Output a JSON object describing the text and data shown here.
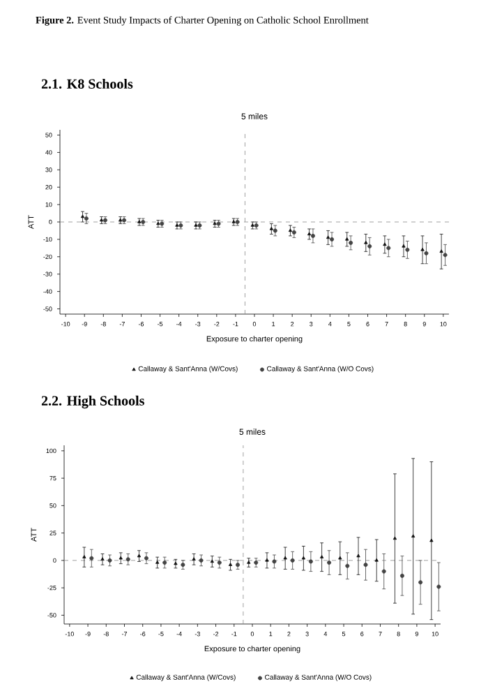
{
  "chart_data": [
    {
      "type": "scatter",
      "title": "2.1. K8 Schools",
      "subtitle": "5 miles",
      "xlabel": "Exposure to charter opening",
      "ylabel": "ATT",
      "annotations": [
        "**Figure 2.** Event Study Impacts of Charter Opening on Catholic School Enrollment"
      ],
      "xlim": [
        -10.3,
        10.3
      ],
      "ylim": [
        -53,
        53
      ],
      "xticks": [
        -10,
        -9,
        -8,
        -7,
        -6,
        -5,
        -4,
        -3,
        -2,
        -1,
        0,
        1,
        2,
        3,
        4,
        5,
        6,
        7,
        8,
        9,
        10
      ],
      "yticks": [
        -50,
        -40,
        -30,
        -20,
        -10,
        0,
        10,
        20,
        30,
        40,
        50
      ],
      "legend": "bottom",
      "grid": false,
      "ref_lines": [
        {
          "axis": "y",
          "value": 0,
          "color": "#888888",
          "line_style": "dashed"
        },
        {
          "axis": "x",
          "value": -0.5,
          "color": "#888888",
          "line_style": "dashed"
        }
      ],
      "series": [
        {
          "name": "Callaway & Sant'Anna (W/Covs)",
          "color": "#111111",
          "marker": "triangle",
          "x": [
            -9.1,
            -8.1,
            -7.1,
            -6.1,
            -5.1,
            -4.1,
            -3.1,
            -2.1,
            -1.1,
            -0.1,
            0.9,
            1.9,
            2.9,
            3.9,
            4.9,
            5.9,
            6.9,
            7.9,
            8.9,
            9.9
          ],
          "values": [
            3,
            1,
            1,
            0,
            -1,
            -2,
            -2,
            -1,
            0,
            -2,
            -4,
            -5,
            -7,
            -9,
            -10,
            -12,
            -13,
            -14,
            -16,
            -17
          ],
          "errors": [
            3,
            2,
            2,
            2,
            2,
            2,
            2,
            2,
            2,
            2,
            3,
            3,
            3,
            4,
            4,
            5,
            5,
            6,
            8,
            10
          ]
        },
        {
          "name": "Callaway & Sant'Anna (W/O Covs)",
          "color": "#444444",
          "marker": "circle",
          "x": [
            -8.9,
            -7.9,
            -6.9,
            -5.9,
            -4.9,
            -3.9,
            -2.9,
            -1.9,
            -0.9,
            0.1,
            1.1,
            2.1,
            3.1,
            4.1,
            5.1,
            6.1,
            7.1,
            8.1,
            9.1,
            10.1
          ],
          "values": [
            2,
            1,
            1,
            0,
            -1,
            -2,
            -2,
            -1,
            0,
            -2,
            -5,
            -6,
            -8,
            -10,
            -12,
            -14,
            -15,
            -16,
            -18,
            -19
          ],
          "errors": [
            3,
            2,
            2,
            2,
            2,
            2,
            2,
            2,
            2,
            2,
            3,
            3,
            4,
            4,
            4,
            5,
            5,
            5,
            6,
            6
          ]
        }
      ]
    },
    {
      "type": "scatter",
      "title": "2.2. High Schools",
      "subtitle": "5 miles",
      "xlabel": "Exposure to charter opening",
      "ylabel": "ATT",
      "xlim": [
        -10.3,
        10.3
      ],
      "ylim": [
        -58,
        105
      ],
      "xticks": [
        -10,
        -9,
        -8,
        -7,
        -6,
        -5,
        -4,
        -3,
        -2,
        -1,
        0,
        1,
        2,
        3,
        4,
        5,
        6,
        7,
        8,
        9,
        10
      ],
      "yticks": [
        -50,
        -25,
        0,
        25,
        50,
        75,
        100
      ],
      "legend": "bottom",
      "grid": false,
      "ref_lines": [
        {
          "axis": "y",
          "value": 0,
          "color": "#888888",
          "line_style": "dashed"
        },
        {
          "axis": "x",
          "value": -0.5,
          "color": "#888888",
          "line_style": "dashed"
        }
      ],
      "series": [
        {
          "name": "Callaway & Sant'Anna (W/Covs)",
          "color": "#111111",
          "marker": "triangle",
          "x": [
            -9.2,
            -8.2,
            -7.2,
            -6.2,
            -5.2,
            -4.2,
            -3.2,
            -2.2,
            -1.2,
            -0.2,
            0.8,
            1.8,
            2.8,
            3.8,
            4.8,
            5.8,
            6.8,
            7.8,
            8.8,
            9.8
          ],
          "values": [
            3,
            1,
            2,
            4,
            -2,
            -3,
            1,
            -1,
            -4,
            -2,
            0,
            2,
            2,
            3,
            2,
            4,
            0,
            20,
            22,
            18
          ],
          "errors": [
            9,
            5,
            5,
            5,
            5,
            4,
            5,
            5,
            5,
            4,
            7,
            10,
            11,
            13,
            15,
            17,
            19,
            59,
            71,
            72
          ]
        },
        {
          "name": "Callaway & Sant'Anna (W/O Covs)",
          "color": "#444444",
          "marker": "circle",
          "x": [
            -8.8,
            -7.8,
            -6.8,
            -5.8,
            -4.8,
            -3.8,
            -2.8,
            -1.8,
            -0.8,
            0.2,
            1.2,
            2.2,
            3.2,
            4.2,
            5.2,
            6.2,
            7.2,
            8.2,
            9.2,
            10.2
          ],
          "values": [
            2,
            0,
            1,
            2,
            -2,
            -4,
            0,
            -2,
            -4,
            -2,
            -1,
            0,
            -1,
            -2,
            -5,
            -4,
            -10,
            -14,
            -20,
            -24
          ],
          "errors": [
            8,
            5,
            5,
            5,
            5,
            4,
            5,
            5,
            4,
            4,
            6,
            8,
            9,
            11,
            12,
            14,
            16,
            18,
            20,
            22
          ]
        }
      ]
    }
  ]
}
